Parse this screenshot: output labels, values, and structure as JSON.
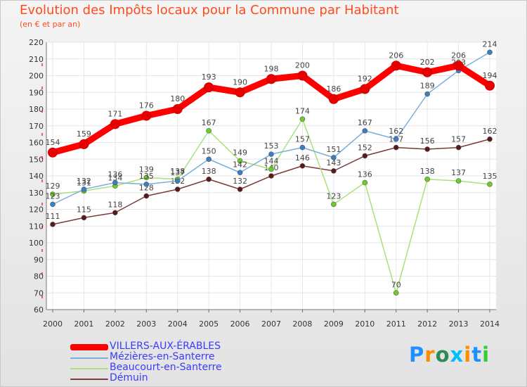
{
  "title": "Evolution des Impôts locaux pour la Commune par Habitant",
  "subtitle": "(en € et par an)",
  "logo": {
    "text": "Proxiti",
    "colors": [
      "#1e90ff",
      "#ff8c00",
      "#2e8b57",
      "#00bfff",
      "#ff8c00",
      "#1e90ff",
      "#32cd32"
    ]
  },
  "chart_data": {
    "type": "line",
    "title": "Evolution des Impôts locaux pour la Commune par Habitant",
    "ylabel": "(en € et par an)",
    "xlabel": "",
    "x": [
      "2000",
      "2001",
      "2002",
      "2003",
      "2004",
      "2005",
      "2006",
      "2007",
      "2008",
      "2009",
      "2010",
      "2011",
      "2012",
      "2013",
      "2014"
    ],
    "ylim": [
      60,
      220
    ],
    "yticks": [
      60,
      70,
      80,
      90,
      100,
      110,
      120,
      130,
      140,
      150,
      160,
      170,
      180,
      190,
      200,
      210,
      220
    ],
    "grid": true,
    "legend_position": "bottom-left",
    "series": [
      {
        "name": "VILLERS-AUX-ÉRABLES",
        "color": "#ff0000",
        "marker": "#e80000",
        "values": [
          154,
          159,
          171,
          176,
          180,
          193,
          190,
          198,
          200,
          186,
          192,
          206,
          202,
          206,
          194
        ]
      },
      {
        "name": "Mézières-en-Santerre",
        "color": "#7aaedc",
        "marker": "#3a7fc0",
        "values": [
          123,
          132,
          136,
          135,
          137,
          150,
          142,
          153,
          157,
          151,
          167,
          162,
          189,
          203,
          214
        ]
      },
      {
        "name": "Beaucourt-en-Santerre",
        "color": "#a8e27a",
        "marker": "#6ccc2a",
        "values": [
          129,
          131,
          134,
          139,
          138,
          167,
          149,
          144,
          174,
          123,
          136,
          70,
          138,
          137,
          135
        ]
      },
      {
        "name": "Démuin",
        "color": "#7a3a3a",
        "marker": "#5a1818",
        "values": [
          111,
          115,
          118,
          128,
          132,
          138,
          132,
          140,
          146,
          143,
          152,
          157,
          156,
          157,
          162
        ]
      }
    ]
  }
}
